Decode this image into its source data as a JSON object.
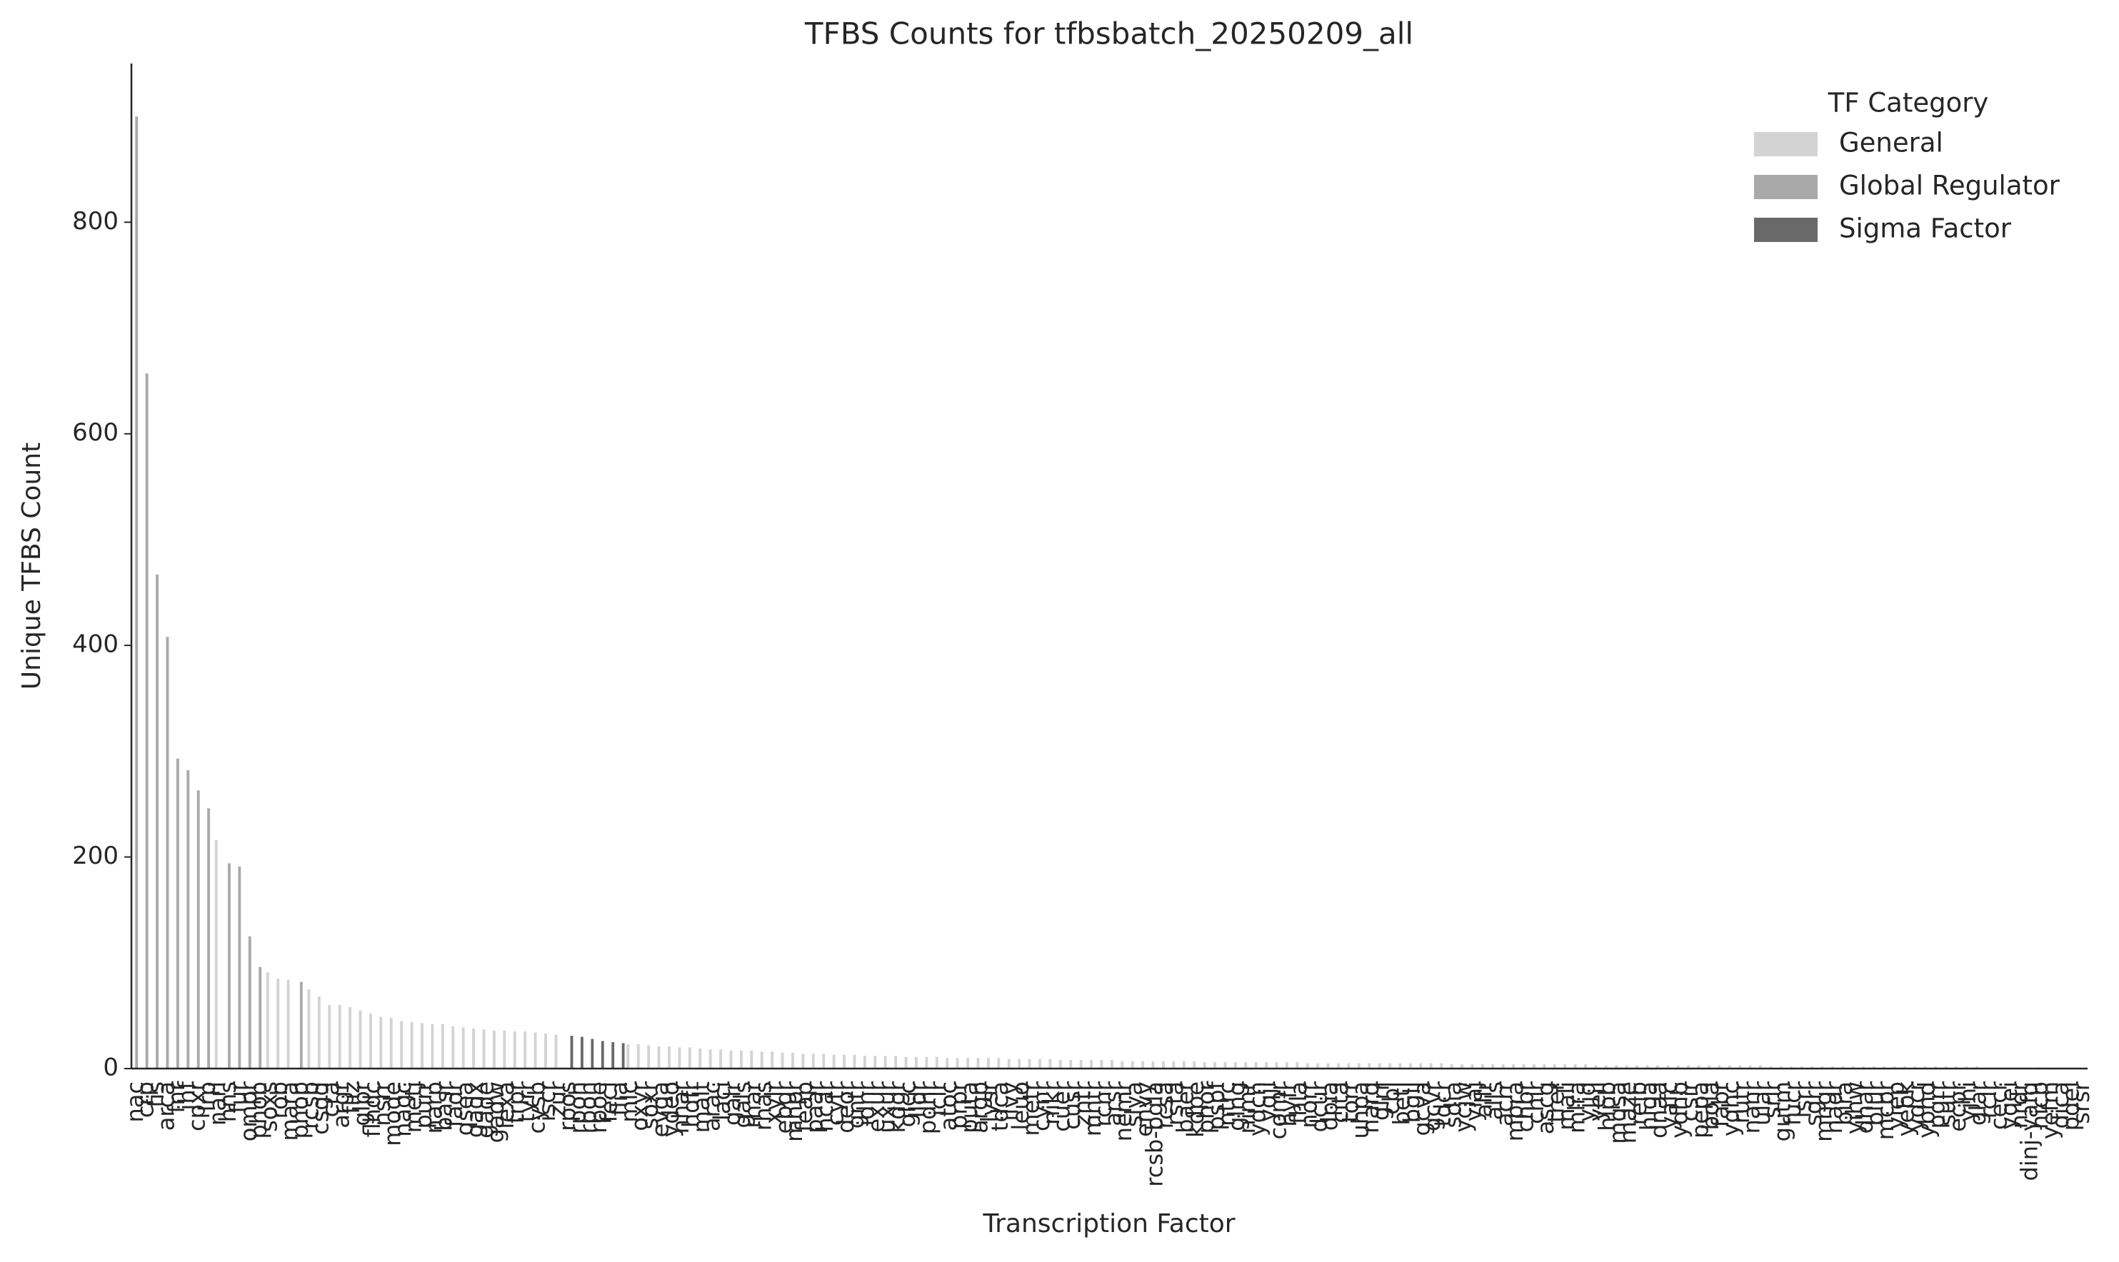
{
  "chart_data": {
    "type": "bar",
    "title": "TFBS Counts for tfbsbatch_20250209_all",
    "xlabel": "Transcription Factor",
    "ylabel": "Unique TFBS Count",
    "legend_title": "TF Category",
    "legend": "upper right",
    "series": [
      {
        "name": "General",
        "color": "#d3d3d3"
      },
      {
        "name": "Global Regulator",
        "color": "#a9a9a9"
      },
      {
        "name": "Sigma Factor",
        "color": "#696969"
      }
    ],
    "categories": [
      "nac",
      "crp",
      "fis",
      "arca",
      "fnr",
      "ihf",
      "cpxr",
      "lrp",
      "narl",
      "hns",
      "fur",
      "ompr",
      "phob",
      "soxs",
      "rob",
      "mara",
      "phop",
      "rcsb",
      "csgd",
      "cra",
      "argr",
      "fliz",
      "glpr",
      "flhdc",
      "nsrr",
      "mode",
      "nagc",
      "metj",
      "purr",
      "narp",
      "basr",
      "fadr",
      "qsea",
      "gadx",
      "gade",
      "gadw",
      "lexa",
      "trpr",
      "tyrr",
      "cysb",
      "iscr",
      "zur",
      "rpos",
      "rpoh",
      "rpon",
      "rpoe",
      "fecl",
      "flia",
      "mlc",
      "oxyr",
      "soxr",
      "evga",
      "ydeo",
      "nhar",
      "hdfr",
      "malt",
      "arac",
      "laci",
      "galr",
      "gals",
      "rhar",
      "rhas",
      "xylr",
      "ebgr",
      "mhpr",
      "feap",
      "paar",
      "hcar",
      "cytr",
      "deor",
      "gntr",
      "idnr",
      "exur",
      "uxur",
      "kdgr",
      "glcc",
      "lldr",
      "pdhr",
      "iclr",
      "atoc",
      "prpr",
      "puta",
      "argp",
      "lysr",
      "tdca",
      "ilvy",
      "leuo",
      "metr",
      "cynr",
      "nikr",
      "cuer",
      "cusr",
      "zntr",
      "mntr",
      "rcnr",
      "arsr",
      "nemr",
      "slya",
      "envy",
      "rcsb-bgla",
      "rcsa",
      "rsta",
      "baer",
      "kdpe",
      "phor",
      "pspf",
      "ntrc",
      "glng",
      "nimr",
      "ydcn",
      "yqji",
      "comr",
      "hyfr",
      "fhla",
      "norr",
      "dcur",
      "dpia",
      "cita",
      "torr",
      "uhpa",
      "narq",
      "glrr",
      "cbl",
      "beti",
      "bglj",
      "gcva",
      "gcvr",
      "tdcr",
      "sdia",
      "ycjw",
      "yiaj",
      "allr",
      "alls",
      "acrr",
      "mpra",
      "chbr",
      "chir",
      "ascg",
      "trer",
      "mali",
      "mlra",
      "yjjq",
      "yeil",
      "hipb",
      "mqsa",
      "maze",
      "relb",
      "higa",
      "dnaa",
      "yafc",
      "ydhb",
      "csir",
      "pepa",
      "bola",
      "fabr",
      "yqhc",
      "rutr",
      "nanr",
      "ular",
      "srlr",
      "gutm",
      "fucr",
      "lsrr",
      "sgrr",
      "mngr",
      "nadr",
      "bira",
      "yihw",
      "dhar",
      "blur",
      "mcbr",
      "yiep",
      "yebk",
      "ydcr",
      "ybhd",
      "pgrr",
      "sutr",
      "ecpr",
      "yjhi",
      "glar",
      "rclr",
      "cecr",
      "yqei",
      "nrdr",
      "dinj-yafq",
      "hicb",
      "yefm",
      "dica",
      "pdel",
      "srsr"
    ],
    "values": [
      900,
      657,
      467,
      408,
      293,
      282,
      263,
      246,
      216,
      194,
      191,
      125,
      96,
      91,
      85,
      84,
      82,
      75,
      68,
      60,
      60,
      58,
      55,
      52,
      49,
      48,
      45,
      44,
      43,
      42,
      42,
      40,
      39,
      38,
      37,
      36,
      36,
      35,
      35,
      34,
      33,
      32,
      31,
      30,
      28,
      26,
      25,
      24,
      23,
      23,
      22,
      21,
      21,
      20,
      20,
      19,
      18,
      18,
      17,
      17,
      17,
      16,
      16,
      15,
      15,
      14,
      14,
      14,
      13,
      13,
      13,
      12,
      12,
      12,
      12,
      11,
      11,
      11,
      11,
      10,
      10,
      10,
      10,
      10,
      10,
      9,
      9,
      9,
      9,
      9,
      8,
      8,
      8,
      8,
      8,
      8,
      7,
      7,
      7,
      7,
      7,
      7,
      7,
      7,
      6,
      6,
      6,
      6,
      6,
      6,
      6,
      6,
      6,
      6,
      5,
      5,
      5,
      5,
      5,
      5,
      5,
      5,
      5,
      5,
      5,
      5,
      5,
      5,
      4,
      4,
      4,
      4,
      4,
      4,
      4,
      4,
      4,
      4,
      4,
      4,
      4,
      4,
      3,
      3,
      3,
      3,
      3,
      3,
      3,
      3,
      3,
      3,
      3,
      3,
      3,
      3,
      3,
      3,
      3,
      2,
      2,
      2,
      2,
      2,
      2,
      2,
      2,
      2,
      2,
      2,
      2,
      2,
      2,
      2,
      2,
      2,
      2,
      2,
      2,
      2,
      1,
      1,
      1,
      1,
      1,
      1,
      1,
      1,
      1,
      1
    ],
    "hue": [
      1,
      1,
      1,
      1,
      1,
      1,
      1,
      1,
      0,
      1,
      1,
      1,
      1,
      0,
      0,
      0,
      1,
      0,
      0,
      0,
      0,
      0,
      0,
      0,
      0,
      0,
      0,
      0,
      0,
      0,
      0,
      0,
      0,
      0,
      0,
      0,
      0,
      0,
      0,
      0,
      0,
      0,
      2,
      2,
      2,
      2,
      2,
      2,
      0,
      0,
      0,
      0,
      0,
      0,
      0,
      0,
      0,
      0,
      0,
      0,
      0,
      0,
      0,
      0,
      0,
      0,
      0,
      0,
      0,
      0,
      0,
      0,
      0,
      0,
      0,
      0,
      0,
      0,
      0,
      0,
      0,
      0,
      0,
      0,
      0,
      0,
      0,
      0,
      0,
      0,
      0,
      0,
      0,
      0,
      0,
      0,
      0,
      0,
      0,
      0,
      0,
      0,
      0,
      0,
      0,
      0,
      0,
      0,
      0,
      0,
      0,
      0,
      0,
      0,
      0,
      0,
      0,
      0,
      0,
      0,
      0,
      0,
      0,
      0,
      0,
      0,
      0,
      0,
      0,
      0,
      0,
      0,
      0,
      0,
      0,
      0,
      0,
      0,
      0,
      0,
      0,
      0,
      0,
      0,
      0,
      0,
      0,
      0,
      0,
      0,
      0,
      0,
      0,
      0,
      0,
      0,
      0,
      0,
      0,
      0,
      0,
      0,
      0,
      0,
      0,
      0,
      0,
      0,
      0,
      0,
      0,
      0,
      0,
      0,
      0,
      0,
      0,
      0,
      0,
      0,
      0,
      0,
      0,
      0,
      0,
      0,
      0,
      0,
      0,
      0
    ],
    "ylim": [
      0,
      950
    ],
    "yticks": [
      0,
      200,
      400,
      600,
      800
    ],
    "grid": false
  }
}
